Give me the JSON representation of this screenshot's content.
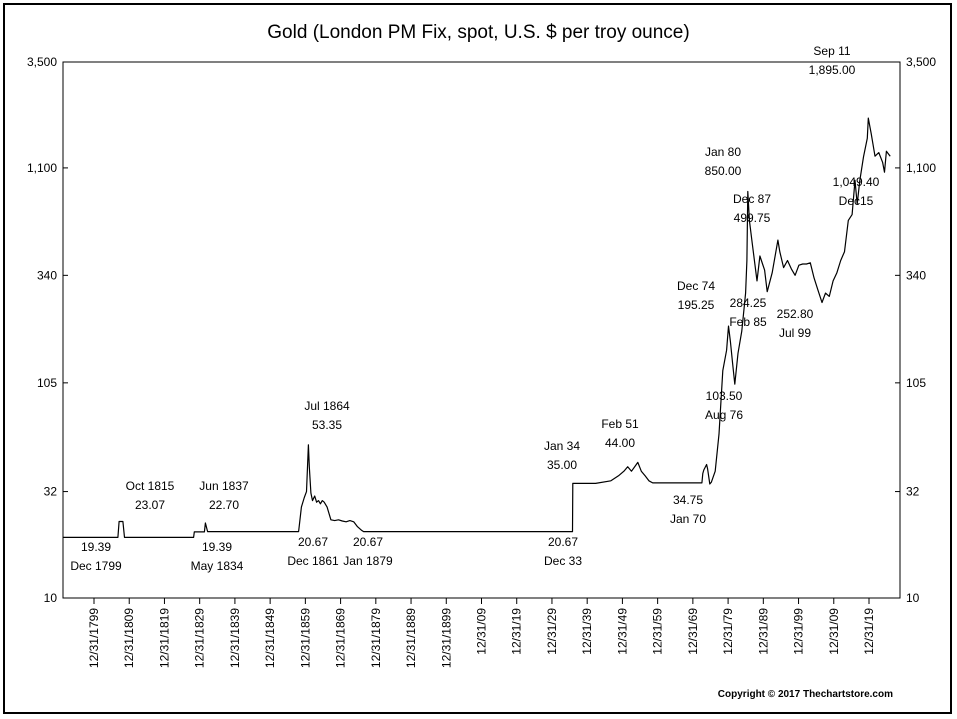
{
  "chart_data": {
    "type": "line",
    "title": "Gold (London PM Fix, spot, U.S. $ per troy ounce)",
    "xlabel": "",
    "ylabel": "",
    "y_scale": "log",
    "ylim": [
      10,
      3500
    ],
    "xlim": [
      "1799-12-31",
      "2019-12-31"
    ],
    "y_ticks": [
      "3,500",
      "1,100",
      "340",
      "105",
      "32",
      "10"
    ],
    "y_tick_values": [
      3500,
      1100,
      340,
      105,
      32,
      10
    ],
    "x_ticks": [
      "12/31/1799",
      "12/31/1809",
      "12/31/1819",
      "12/31/1829",
      "12/31/1839",
      "12/31/1849",
      "12/31/1859",
      "12/31/1869",
      "12/31/1879",
      "12/31/1889",
      "12/31/1899",
      "12/31/09",
      "12/31/19",
      "12/31/29",
      "12/31/39",
      "12/31/49",
      "12/31/59",
      "12/31/69",
      "12/31/79",
      "12/31/89",
      "12/31/99",
      "12/31/09",
      "12/31/19"
    ],
    "grid": false,
    "series": [
      {
        "values": [
          [
            "1799-12-31",
            19.39
          ],
          [
            "1814-06-01",
            19.39
          ],
          [
            "1814-10-01",
            23.07
          ],
          [
            "1815-10-01",
            23.07
          ],
          [
            "1816-03-01",
            19.39
          ],
          [
            "1834-05-01",
            19.39
          ],
          [
            "1834-07-01",
            20.6
          ],
          [
            "1837-03-01",
            20.6
          ],
          [
            "1837-06-01",
            22.7
          ],
          [
            "1838-01-01",
            20.67
          ],
          [
            "1861-12-01",
            20.67
          ],
          [
            "1862-03-01",
            22.5
          ],
          [
            "1862-09-01",
            27.0
          ],
          [
            "1863-06-01",
            30.0
          ],
          [
            "1864-01-01",
            32.0
          ],
          [
            "1864-07-01",
            53.35
          ],
          [
            "1864-10-01",
            42.0
          ],
          [
            "1865-03-01",
            31.5
          ],
          [
            "1865-08-01",
            29.0
          ],
          [
            "1866-03-01",
            30.5
          ],
          [
            "1866-09-01",
            28.5
          ],
          [
            "1867-03-01",
            29.0
          ],
          [
            "1867-09-01",
            28.0
          ],
          [
            "1868-03-01",
            29.0
          ],
          [
            "1868-09-01",
            28.5
          ],
          [
            "1869-06-01",
            27.0
          ],
          [
            "1870-06-01",
            23.5
          ],
          [
            "1871-06-01",
            23.3
          ],
          [
            "1872-06-01",
            23.5
          ],
          [
            "1873-06-01",
            23.2
          ],
          [
            "1874-06-01",
            23.0
          ],
          [
            "1875-06-01",
            23.3
          ],
          [
            "1876-06-01",
            23.0
          ],
          [
            "1877-06-01",
            21.8
          ],
          [
            "1878-06-01",
            21.0
          ],
          [
            "1879-01-01",
            20.67
          ],
          [
            "1933-12-01",
            20.67
          ],
          [
            "1934-01-01",
            35.0
          ],
          [
            "1940-01-01",
            35.0
          ],
          [
            "1944-01-01",
            36.0
          ],
          [
            "1946-01-01",
            38.0
          ],
          [
            "1947-06-01",
            40.0
          ],
          [
            "1948-06-01",
            42.0
          ],
          [
            "1949-06-01",
            40.0
          ],
          [
            "1951-02-01",
            44.0
          ],
          [
            "1952-01-01",
            40.0
          ],
          [
            "1953-01-01",
            38.0
          ],
          [
            "1954-01-01",
            36.0
          ],
          [
            "1955-01-01",
            35.2
          ],
          [
            "1967-12-01",
            35.2
          ],
          [
            "1968-03-01",
            39.0
          ],
          [
            "1968-06-01",
            40.5
          ],
          [
            "1969-03-01",
            43.0
          ],
          [
            "1969-06-01",
            41.0
          ],
          [
            "1970-01-01",
            34.75
          ],
          [
            "1970-06-01",
            35.5
          ],
          [
            "1971-06-01",
            40.0
          ],
          [
            "1972-06-01",
            60.0
          ],
          [
            "1973-06-01",
            120.0
          ],
          [
            "1974-06-01",
            150.0
          ],
          [
            "1974-12-01",
            195.25
          ],
          [
            "1975-06-01",
            165.0
          ],
          [
            "1976-01-01",
            130.0
          ],
          [
            "1976-08-01",
            103.5
          ],
          [
            "1977-06-01",
            145.0
          ],
          [
            "1978-06-01",
            185.0
          ],
          [
            "1979-06-01",
            280.0
          ],
          [
            "1979-10-01",
            400.0
          ],
          [
            "1980-01-01",
            850.0
          ],
          [
            "1980-06-01",
            620.0
          ],
          [
            "1981-03-01",
            480.0
          ],
          [
            "1982-06-01",
            320.0
          ],
          [
            "1983-03-01",
            420.0
          ],
          [
            "1984-06-01",
            360.0
          ],
          [
            "1985-02-01",
            284.25
          ],
          [
            "1986-06-01",
            350.0
          ],
          [
            "1987-12-01",
            499.75
          ],
          [
            "1988-06-01",
            440.0
          ],
          [
            "1989-06-01",
            370.0
          ],
          [
            "1990-06-01",
            400.0
          ],
          [
            "1991-06-01",
            365.0
          ],
          [
            "1992-06-01",
            340.0
          ],
          [
            "1993-06-01",
            380.0
          ],
          [
            "1994-06-01",
            385.0
          ],
          [
            "1995-06-01",
            385.0
          ],
          [
            "1996-06-01",
            390.0
          ],
          [
            "1997-06-01",
            330.0
          ],
          [
            "1998-06-01",
            290.0
          ],
          [
            "1999-07-01",
            252.8
          ],
          [
            "2000-06-01",
            280.0
          ],
          [
            "2001-06-01",
            270.0
          ],
          [
            "2002-06-01",
            320.0
          ],
          [
            "2003-06-01",
            350.0
          ],
          [
            "2004-06-01",
            400.0
          ],
          [
            "2005-06-01",
            440.0
          ],
          [
            "2006-06-01",
            620.0
          ],
          [
            "2007-06-01",
            660.0
          ],
          [
            "2008-03-01",
            960.0
          ],
          [
            "2008-10-01",
            740.0
          ],
          [
            "2009-06-01",
            950.0
          ],
          [
            "2010-06-01",
            1240.0
          ],
          [
            "2011-06-01",
            1520.0
          ],
          [
            "2011-09-01",
            1895.0
          ],
          [
            "2012-06-01",
            1600.0
          ],
          [
            "2013-06-01",
            1250.0
          ],
          [
            "2014-06-01",
            1300.0
          ],
          [
            "2015-06-01",
            1170.0
          ],
          [
            "2015-12-01",
            1049.4
          ],
          [
            "2016-06-01",
            1320.0
          ],
          [
            "2017-06-01",
            1250.0
          ]
        ]
      }
    ],
    "annotations": [
      {
        "lines": [
          "19.39",
          "Dec 1799"
        ]
      },
      {
        "lines": [
          "Oct 1815",
          "23.07"
        ]
      },
      {
        "lines": [
          "Jun 1837",
          "22.70"
        ]
      },
      {
        "lines": [
          "19.39",
          "May 1834"
        ]
      },
      {
        "lines": [
          "Jul 1864",
          "53.35"
        ]
      },
      {
        "lines": [
          "20.67",
          "Dec 1861"
        ]
      },
      {
        "lines": [
          "20.67",
          "Jan 1879"
        ]
      },
      {
        "lines": [
          "Jan 34",
          "35.00"
        ]
      },
      {
        "lines": [
          "20.67",
          "Dec 33"
        ]
      },
      {
        "lines": [
          "Feb 51",
          "44.00"
        ]
      },
      {
        "lines": [
          "34.75",
          "Jan 70"
        ]
      },
      {
        "lines": [
          "Dec 74",
          "195.25"
        ]
      },
      {
        "lines": [
          "103.50",
          "Aug 76"
        ]
      },
      {
        "lines": [
          "Jan 80",
          "850.00"
        ]
      },
      {
        "lines": [
          "Dec 87",
          "499.75"
        ]
      },
      {
        "lines": [
          "284.25",
          "Feb 85"
        ]
      },
      {
        "lines": [
          "252.80",
          "Jul 99"
        ]
      },
      {
        "lines": [
          "Sep 11",
          "1,895.00"
        ]
      },
      {
        "lines": [
          "1,049.40",
          "Dec15"
        ]
      }
    ]
  },
  "copyright": "Copyright © 2017 Thechartstore.com"
}
